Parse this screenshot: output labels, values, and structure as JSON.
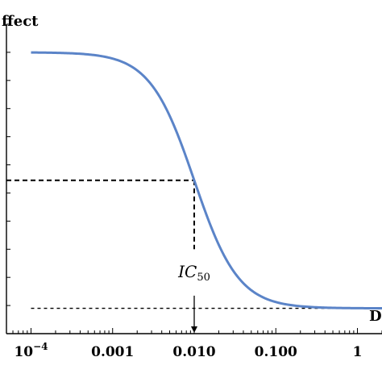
{
  "chart_data": {
    "type": "line",
    "xlabel": "D",
    "ylabel": "ffect",
    "x_scale": "log",
    "xlim": [
      5e-05,
      2
    ],
    "ylim": [
      0,
      1.1
    ],
    "x_ticks": [
      {
        "value": 0.0001,
        "base": "10",
        "exp": "−4"
      },
      {
        "value": 0.001,
        "label": "0.001"
      },
      {
        "value": 0.01,
        "label": "0.010"
      },
      {
        "value": 0.1,
        "label": "0.100"
      },
      {
        "value": 1,
        "label": "1"
      }
    ],
    "curve": {
      "model": "logistic dose-response",
      "top": 1.0,
      "bottom": 0.09,
      "ic50": 0.01,
      "hill": 1.6,
      "x_range": [
        0.0001,
        2
      ],
      "color": "#5b84c8"
    },
    "ic50_marker": {
      "x": 0.01,
      "y": 0.545,
      "label_main": "IC",
      "label_sub": "50"
    },
    "baseline": {
      "y": 0.09
    }
  }
}
